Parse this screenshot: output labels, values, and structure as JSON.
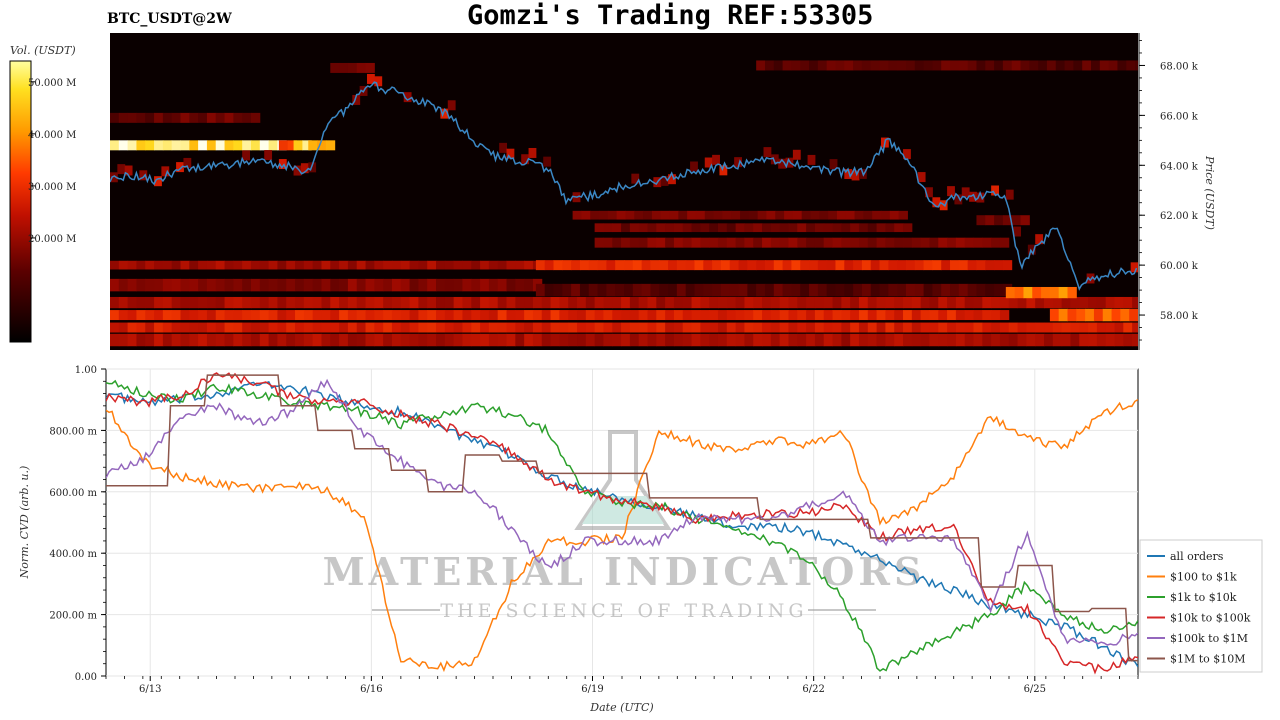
{
  "header": {
    "title": "Gomzi's Trading REF:53305",
    "pair": "BTC_USDT@2W"
  },
  "heatmap": {
    "colorbar_title": "Vol. (USDT)",
    "colorbar_ticks": [
      {
        "label": "50.000 M",
        "value": 50
      },
      {
        "label": "40.000 M",
        "value": 40
      },
      {
        "label": "30.000 M",
        "value": 30
      },
      {
        "label": "20.000 M",
        "value": 20
      }
    ],
    "colorbar_range": [
      0,
      54
    ],
    "price_axis_label": "Price (USDT)",
    "price_ticks": [
      {
        "label": "68.00 k",
        "value": 68
      },
      {
        "label": "66.00 k",
        "value": 66
      },
      {
        "label": "64.00 k",
        "value": 64
      },
      {
        "label": "62.00 k",
        "value": 62
      },
      {
        "label": "60.00 k",
        "value": 60
      },
      {
        "label": "58.00 k",
        "value": 58
      }
    ],
    "price_range": [
      56.6,
      69.3
    ],
    "price_color": "#3b87c4"
  },
  "cvd": {
    "ylabel": "Norm. CVD (arb. u.)",
    "xlabel": "Date (UTC)",
    "yticks": [
      {
        "label": "1.00",
        "value": 1.0
      },
      {
        "label": "800.00 m",
        "value": 0.8
      },
      {
        "label": "600.00 m",
        "value": 0.6
      },
      {
        "label": "400.00 m",
        "value": 0.4
      },
      {
        "label": "200.00 m",
        "value": 0.2
      },
      {
        "label": "0.00",
        "value": 0.0
      }
    ],
    "xticks": [
      {
        "label": "6/13",
        "value": 0.6
      },
      {
        "label": "6/16",
        "value": 3.6
      },
      {
        "label": "6/19",
        "value": 6.6
      },
      {
        "label": "6/22",
        "value": 9.6
      },
      {
        "label": "6/25",
        "value": 12.6
      }
    ]
  },
  "watermark": {
    "line1": "MATERIAL INDICATORS",
    "line2": "THE SCIENCE OF TRADING"
  },
  "chart_data": [
    {
      "type": "heatmap",
      "title": "Gomzi's Trading REF:53305",
      "subtitle": "BTC_USDT@2W",
      "ylabel": "Price (USDT)",
      "colorbar_label": "Vol. (USDT)",
      "ylim": [
        56600,
        69300
      ],
      "price_series": {
        "x_days_from_start": [
          0,
          0.3,
          0.6,
          1.0,
          1.5,
          2.0,
          2.4,
          2.7,
          3.0,
          3.3,
          3.5,
          3.8,
          4.2,
          4.6,
          5.0,
          5.3,
          5.7,
          6.0,
          6.2,
          6.6,
          7.0,
          7.5,
          8.0,
          8.5,
          9.0,
          9.5,
          10.0,
          10.3,
          10.6,
          10.9,
          11.2,
          11.5,
          11.9,
          12.2,
          12.4,
          12.6,
          12.9,
          13.2,
          13.5,
          13.8,
          14.0
        ],
        "price": [
          63500,
          63600,
          63400,
          63800,
          64000,
          64200,
          64000,
          63700,
          65800,
          66400,
          67300,
          67000,
          66600,
          66100,
          64800,
          64300,
          64100,
          63800,
          62600,
          62800,
          63200,
          63400,
          63800,
          64000,
          64200,
          64000,
          63700,
          63800,
          65000,
          64100,
          62300,
          62700,
          62800,
          62800,
          59900,
          60700,
          61500,
          59200,
          59500,
          59800,
          59700
        ]
      },
      "major_liquidity_bands_usdt": [
        {
          "price_low": 64300,
          "price_high": 64700,
          "description": "bright band 6/12 to 6/14 (~50 M)"
        },
        {
          "price_low": 59700,
          "price_high": 60100,
          "description": "band 6/18 to 6/24 (~30 M)"
        },
        {
          "price_low": 58500,
          "price_high": 59000,
          "description": "band 6/24 to 6/25 (~35 M)"
        },
        {
          "price_low": 57500,
          "price_high": 58200,
          "description": "band 6/25 to 6/26 (~35 M)"
        }
      ]
    },
    {
      "type": "line",
      "xlabel": "Date (UTC)",
      "ylabel": "Norm. CVD (arb. u.)",
      "ylim": [
        0,
        1
      ],
      "x_days_from_start": [
        0,
        0.5,
        1.0,
        1.5,
        2.0,
        2.5,
        3.0,
        3.5,
        4.0,
        4.5,
        5.0,
        5.5,
        6.0,
        6.5,
        7.0,
        7.5,
        8.0,
        8.5,
        9.0,
        9.5,
        10.0,
        10.5,
        11.0,
        11.5,
        12.0,
        12.5,
        13.0,
        13.5,
        14.0
      ],
      "series": [
        {
          "name": "all orders",
          "color": "#1f77b4",
          "values": [
            0.92,
            0.89,
            0.9,
            0.92,
            0.95,
            0.94,
            0.91,
            0.88,
            0.86,
            0.82,
            0.76,
            0.72,
            0.65,
            0.61,
            0.58,
            0.55,
            0.52,
            0.49,
            0.49,
            0.47,
            0.43,
            0.38,
            0.32,
            0.28,
            0.23,
            0.2,
            0.16,
            0.1,
            0.03
          ]
        },
        {
          "name": "$100 to $1k",
          "color": "#ff7f0e",
          "values": [
            0.88,
            0.7,
            0.65,
            0.63,
            0.61,
            0.62,
            0.6,
            0.52,
            0.06,
            0.03,
            0.05,
            0.3,
            0.44,
            0.44,
            0.45,
            0.8,
            0.76,
            0.73,
            0.77,
            0.75,
            0.8,
            0.5,
            0.55,
            0.65,
            0.85,
            0.77,
            0.75,
            0.85,
            0.9
          ]
        },
        {
          "name": "$1k to $10k",
          "color": "#2ca02c",
          "values": [
            0.97,
            0.92,
            0.9,
            0.94,
            0.92,
            0.89,
            0.88,
            0.86,
            0.82,
            0.85,
            0.88,
            0.85,
            0.8,
            0.6,
            0.56,
            0.56,
            0.51,
            0.48,
            0.44,
            0.38,
            0.25,
            0.02,
            0.08,
            0.14,
            0.2,
            0.3,
            0.2,
            0.15,
            0.18
          ]
        },
        {
          "name": "$10k to $100k",
          "color": "#d62728",
          "values": [
            0.91,
            0.89,
            0.91,
            0.98,
            0.96,
            0.91,
            0.89,
            0.89,
            0.85,
            0.82,
            0.78,
            0.73,
            0.64,
            0.6,
            0.57,
            0.55,
            0.51,
            0.52,
            0.53,
            0.53,
            0.56,
            0.45,
            0.48,
            0.48,
            0.24,
            0.22,
            0.05,
            0.02,
            0.06
          ]
        },
        {
          "name": "$100k to $1M",
          "color": "#9467bd",
          "values": [
            0.66,
            0.7,
            0.84,
            0.88,
            0.82,
            0.86,
            0.96,
            0.79,
            0.7,
            0.62,
            0.61,
            0.48,
            0.35,
            0.44,
            0.44,
            0.44,
            0.52,
            0.51,
            0.51,
            0.55,
            0.6,
            0.44,
            0.45,
            0.45,
            0.22,
            0.47,
            0.12,
            0.1,
            0.14
          ]
        },
        {
          "name": "$1M to $10M",
          "color": "#8c564b",
          "values": [
            0.62,
            0.62,
            0.88,
            0.98,
            0.98,
            0.88,
            0.8,
            0.74,
            0.67,
            0.6,
            0.72,
            0.7,
            0.66,
            0.66,
            0.66,
            0.58,
            0.58,
            0.58,
            0.51,
            0.51,
            0.51,
            0.45,
            0.45,
            0.45,
            0.29,
            0.36,
            0.21,
            0.22,
            0.05
          ]
        }
      ]
    }
  ]
}
